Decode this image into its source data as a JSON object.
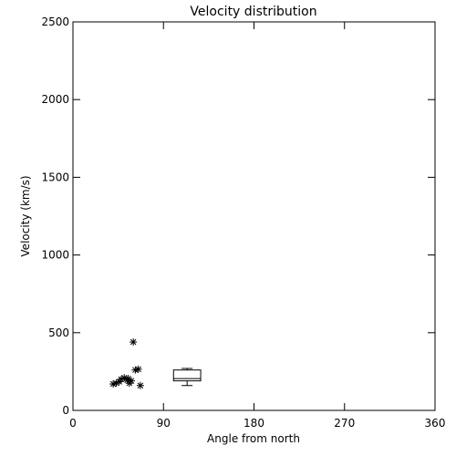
{
  "chart_data": {
    "type": "scatter",
    "title": "Velocity distribution",
    "xlabel": "Angle from north",
    "ylabel": "Velocity (km/s)",
    "xlim": [
      0,
      360
    ],
    "ylim": [
      0,
      2500
    ],
    "xticks": [
      "0",
      "90",
      "180",
      "270",
      "360"
    ],
    "yticks": [
      "0",
      "500",
      "1000",
      "1500",
      "2000",
      "2500"
    ],
    "grid": false,
    "legend": "none",
    "marker": "asterisk",
    "points": [
      {
        "x": 40,
        "y": 170
      },
      {
        "x": 43,
        "y": 175
      },
      {
        "x": 46,
        "y": 185
      },
      {
        "x": 48,
        "y": 200
      },
      {
        "x": 51,
        "y": 210
      },
      {
        "x": 54,
        "y": 195
      },
      {
        "x": 56,
        "y": 175
      },
      {
        "x": 58,
        "y": 190
      },
      {
        "x": 60,
        "y": 440
      },
      {
        "x": 62,
        "y": 260
      },
      {
        "x": 65,
        "y": 265
      },
      {
        "x": 67,
        "y": 160
      },
      {
        "x": 55,
        "y": 205
      }
    ],
    "boxplot": {
      "x_min": 100,
      "x_max": 127,
      "whisker_low": 160,
      "q1": 190,
      "median": 205,
      "q3": 260,
      "whisker_high": 270
    }
  }
}
